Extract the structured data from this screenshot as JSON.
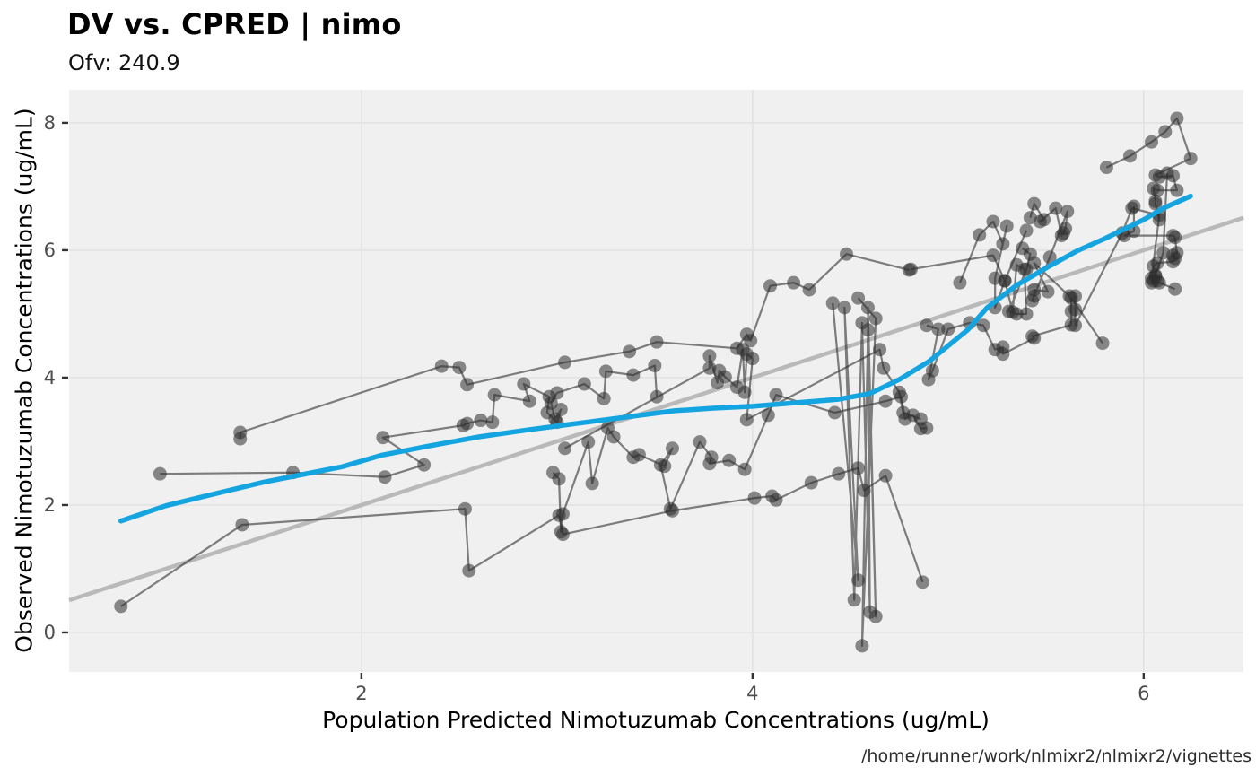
{
  "header": {
    "title": "DV vs. CPRED | nimo",
    "subtitle": "Ofv: 240.9"
  },
  "caption": "/home/runner/work/nlmixr2/nlmixr2/vignettes",
  "chart_data": {
    "type": "scatter",
    "title": "DV vs. CPRED | nimo",
    "subtitle": "Ofv: 240.9",
    "xlabel": "Population Predicted Nimotuzumab Concentrations (ug/mL)",
    "ylabel": "Observed Nimotuzumab Concentrations (ug/mL)",
    "xlim": [
      0.505,
      6.51
    ],
    "ylim": [
      -0.62,
      8.52
    ],
    "x_ticks": [
      2,
      4,
      6
    ],
    "y_ticks": [
      0,
      2,
      4,
      6,
      8
    ],
    "grid": true,
    "legend": "none",
    "colors": {
      "panel_bg": "#f0f0f0",
      "gridline": "#e2e2e2",
      "identity_line": "#b9b9b9",
      "smooth_line": "#14a5e1",
      "point": "#2e2e2e",
      "profile_line": "#2e2e2e",
      "tick_mark": "#333333",
      "tick_label": "#4d4d4d"
    },
    "identity_line": {
      "from": [
        0.505,
        0.505
      ],
      "to": [
        6.51,
        6.51
      ]
    },
    "smooth_line": [
      [
        0.77,
        1.75
      ],
      [
        1.0,
        1.99
      ],
      [
        1.2,
        2.14
      ],
      [
        1.5,
        2.36
      ],
      [
        1.7,
        2.48
      ],
      [
        1.9,
        2.6
      ],
      [
        2.1,
        2.78
      ],
      [
        2.35,
        2.93
      ],
      [
        2.6,
        3.07
      ],
      [
        2.85,
        3.18
      ],
      [
        3.1,
        3.28
      ],
      [
        3.35,
        3.38
      ],
      [
        3.6,
        3.48
      ],
      [
        3.8,
        3.52
      ],
      [
        4.0,
        3.55
      ],
      [
        4.2,
        3.6
      ],
      [
        4.44,
        3.66
      ],
      [
        4.6,
        3.75
      ],
      [
        4.75,
        3.97
      ],
      [
        4.9,
        4.25
      ],
      [
        5.0,
        4.5
      ],
      [
        5.1,
        4.75
      ],
      [
        5.2,
        5.1
      ],
      [
        5.35,
        5.45
      ],
      [
        5.5,
        5.72
      ],
      [
        5.66,
        5.99
      ],
      [
        5.8,
        6.18
      ],
      [
        6.0,
        6.48
      ],
      [
        6.1,
        6.66
      ],
      [
        6.24,
        6.85
      ]
    ],
    "profiles": [
      [
        [
          0.77,
          0.41
        ],
        [
          1.39,
          1.69
        ],
        [
          2.53,
          1.94
        ],
        [
          2.55,
          0.97
        ],
        [
          3.01,
          1.84
        ],
        [
          3.03,
          1.54
        ],
        [
          3.59,
          1.91
        ],
        [
          4.01,
          2.11
        ],
        [
          4.1,
          2.14
        ],
        [
          4.12,
          2.08
        ],
        [
          4.3,
          2.35
        ],
        [
          4.44,
          2.49
        ],
        [
          4.54,
          2.58
        ],
        [
          4.57,
          2.23
        ],
        [
          4.68,
          2.46
        ],
        [
          4.87,
          0.79
        ]
      ],
      [
        [
          0.97,
          2.49
        ],
        [
          1.65,
          2.51
        ],
        [
          2.12,
          2.44
        ],
        [
          2.32,
          2.63
        ],
        [
          2.11,
          3.06
        ],
        [
          2.52,
          3.25
        ],
        [
          2.54,
          3.28
        ],
        [
          2.61,
          3.33
        ],
        [
          2.67,
          3.3
        ],
        [
          2.68,
          3.73
        ],
        [
          2.86,
          3.63
        ],
        [
          2.83,
          3.9
        ],
        [
          2.96,
          3.7
        ],
        [
          2.95,
          3.45
        ],
        [
          3.0,
          3.3
        ],
        [
          3.02,
          3.5
        ],
        [
          2.99,
          3.35
        ],
        [
          2.97,
          3.6
        ],
        [
          3.0,
          3.76
        ],
        [
          3.14,
          3.9
        ],
        [
          3.24,
          3.67
        ],
        [
          3.25,
          4.1
        ],
        [
          3.39,
          4.04
        ],
        [
          3.5,
          4.19
        ],
        [
          3.51,
          3.7
        ]
      ],
      [
        [
          1.38,
          3.04
        ],
        [
          1.38,
          3.14
        ],
        [
          2.41,
          4.18
        ],
        [
          2.5,
          4.16
        ],
        [
          2.54,
          3.89
        ],
        [
          3.04,
          4.24
        ],
        [
          3.37,
          4.41
        ],
        [
          3.51,
          4.56
        ],
        [
          3.92,
          4.46
        ],
        [
          3.97,
          4.68
        ],
        [
          3.99,
          4.58
        ],
        [
          4.09,
          5.44
        ],
        [
          4.21,
          5.49
        ],
        [
          4.29,
          5.38
        ],
        [
          4.48,
          5.94
        ],
        [
          4.8,
          5.69
        ]
      ],
      [
        [
          2.98,
          2.51
        ],
        [
          3.01,
          2.41
        ],
        [
          3.02,
          1.58
        ],
        [
          3.03,
          1.86
        ],
        [
          3.16,
          2.99
        ],
        [
          3.18,
          2.34
        ],
        [
          3.26,
          3.21
        ],
        [
          3.29,
          3.07
        ],
        [
          3.39,
          2.75
        ],
        [
          3.42,
          2.79
        ],
        [
          3.55,
          2.61
        ],
        [
          3.59,
          2.89
        ],
        [
          3.53,
          2.63
        ],
        [
          3.58,
          1.94
        ],
        [
          3.73,
          2.99
        ],
        [
          3.79,
          2.75
        ],
        [
          3.78,
          2.65
        ],
        [
          3.88,
          2.7
        ],
        [
          3.96,
          2.56
        ],
        [
          4.08,
          3.41
        ],
        [
          4.12,
          3.73
        ],
        [
          4.42,
          3.45
        ],
        [
          4.68,
          3.63
        ],
        [
          4.76,
          3.7
        ],
        [
          4.78,
          3.35
        ],
        [
          4.82,
          3.41
        ],
        [
          4.86,
          3.2
        ],
        [
          4.89,
          3.21
        ]
      ],
      [
        [
          3.04,
          2.89
        ],
        [
          3.78,
          4.15
        ],
        [
          3.78,
          4.34
        ],
        [
          3.82,
          3.92
        ],
        [
          3.83,
          4.11
        ],
        [
          3.86,
          4.01
        ],
        [
          3.92,
          3.85
        ],
        [
          3.95,
          4.44
        ],
        [
          3.96,
          3.77
        ],
        [
          3.97,
          4.37
        ],
        [
          4.0,
          4.3
        ],
        [
          3.97,
          3.34
        ],
        [
          4.65,
          4.44
        ],
        [
          4.67,
          4.15
        ],
        [
          4.75,
          3.77
        ],
        [
          4.77,
          3.45
        ],
        [
          4.86,
          3.35
        ]
      ],
      [
        [
          4.41,
          5.17
        ],
        [
          4.54,
          0.82
        ],
        [
          4.47,
          5.1
        ],
        [
          4.52,
          0.51
        ],
        [
          4.56,
          4.86
        ],
        [
          4.6,
          0.32
        ],
        [
          4.59,
          5.1
        ],
        [
          4.63,
          0.25
        ],
        [
          4.59,
          4.75
        ],
        [
          4.56,
          -0.21
        ],
        [
          4.63,
          4.93
        ],
        [
          4.54,
          5.25
        ]
      ],
      [
        [
          4.89,
          4.82
        ],
        [
          4.95,
          4.76
        ],
        [
          4.9,
          3.97
        ],
        [
          4.92,
          4.11
        ],
        [
          5.0,
          4.76
        ],
        [
          5.11,
          4.86
        ],
        [
          5.18,
          4.82
        ],
        [
          5.24,
          4.44
        ],
        [
          5.28,
          4.48
        ],
        [
          5.28,
          4.37
        ],
        [
          5.44,
          4.62
        ],
        [
          5.43,
          4.65
        ],
        [
          5.63,
          4.83
        ],
        [
          5.63,
          5.04
        ],
        [
          5.63,
          5.25
        ],
        [
          5.79,
          4.54
        ]
      ],
      [
        [
          5.06,
          5.49
        ],
        [
          5.16,
          6.24
        ],
        [
          5.23,
          6.45
        ],
        [
          5.28,
          6.1
        ],
        [
          5.3,
          6.38
        ],
        [
          5.24,
          5.56
        ],
        [
          5.24,
          5.1
        ],
        [
          5.29,
          5.52
        ],
        [
          5.33,
          5.03
        ],
        [
          5.35,
          5.77
        ],
        [
          5.39,
          5.7
        ],
        [
          5.4,
          5.0
        ],
        [
          5.35,
          5.0
        ],
        [
          5.31,
          5.04
        ],
        [
          5.4,
          5.7
        ],
        [
          5.42,
          5.94
        ],
        [
          5.38,
          6.03
        ]
      ],
      [
        [
          5.42,
          6.51
        ],
        [
          5.44,
          6.73
        ],
        [
          5.49,
          6.48
        ],
        [
          5.47,
          6.45
        ],
        [
          5.55,
          6.66
        ],
        [
          5.58,
          6.23
        ],
        [
          5.59,
          6.27
        ],
        [
          5.6,
          6.34
        ],
        [
          5.61,
          6.61
        ],
        [
          5.52,
          5.89
        ],
        [
          5.43,
          5.21
        ],
        [
          5.44,
          5.28
        ],
        [
          5.44,
          5.38
        ],
        [
          5.51,
          5.35
        ],
        [
          5.44,
          5.8
        ],
        [
          5.62,
          5.28
        ]
      ],
      [
        [
          5.65,
          5.28
        ],
        [
          5.65,
          5.07
        ],
        [
          5.65,
          4.82
        ],
        [
          5.89,
          6.27
        ],
        [
          5.94,
          6.66
        ],
        [
          6.08,
          6.55
        ],
        [
          6.04,
          5.56
        ],
        [
          6.06,
          5.61
        ],
        [
          6.1,
          5.96
        ],
        [
          6.12,
          7.21
        ]
      ],
      [
        [
          5.81,
          7.3
        ],
        [
          5.93,
          7.48
        ],
        [
          6.04,
          7.7
        ],
        [
          6.11,
          7.86
        ],
        [
          6.17,
          8.07
        ],
        [
          6.24,
          7.44
        ],
        [
          6.06,
          7.18
        ],
        [
          6.08,
          7.15
        ],
        [
          6.15,
          7.17
        ],
        [
          6.17,
          6.94
        ],
        [
          6.07,
          6.94
        ],
        [
          6.05,
          6.97
        ],
        [
          6.06,
          6.77
        ],
        [
          6.06,
          6.73
        ],
        [
          6.08,
          6.48
        ]
      ],
      [
        [
          5.95,
          6.69
        ],
        [
          5.95,
          6.3
        ],
        [
          5.9,
          6.23
        ],
        [
          6.15,
          6.23
        ],
        [
          6.16,
          6.2
        ],
        [
          6.17,
          5.96
        ],
        [
          6.15,
          5.92
        ],
        [
          6.16,
          5.87
        ],
        [
          6.15,
          5.82
        ],
        [
          6.07,
          5.8
        ],
        [
          6.05,
          5.75
        ],
        [
          6.06,
          5.59
        ],
        [
          6.07,
          5.52
        ],
        [
          6.05,
          5.52
        ],
        [
          6.04,
          5.49
        ],
        [
          6.08,
          5.49
        ],
        [
          6.16,
          5.39
        ]
      ],
      [
        [
          4.81,
          5.7
        ],
        [
          5.23,
          5.92
        ],
        [
          5.29,
          5.52
        ],
        [
          5.4,
          6.31
        ]
      ]
    ]
  }
}
